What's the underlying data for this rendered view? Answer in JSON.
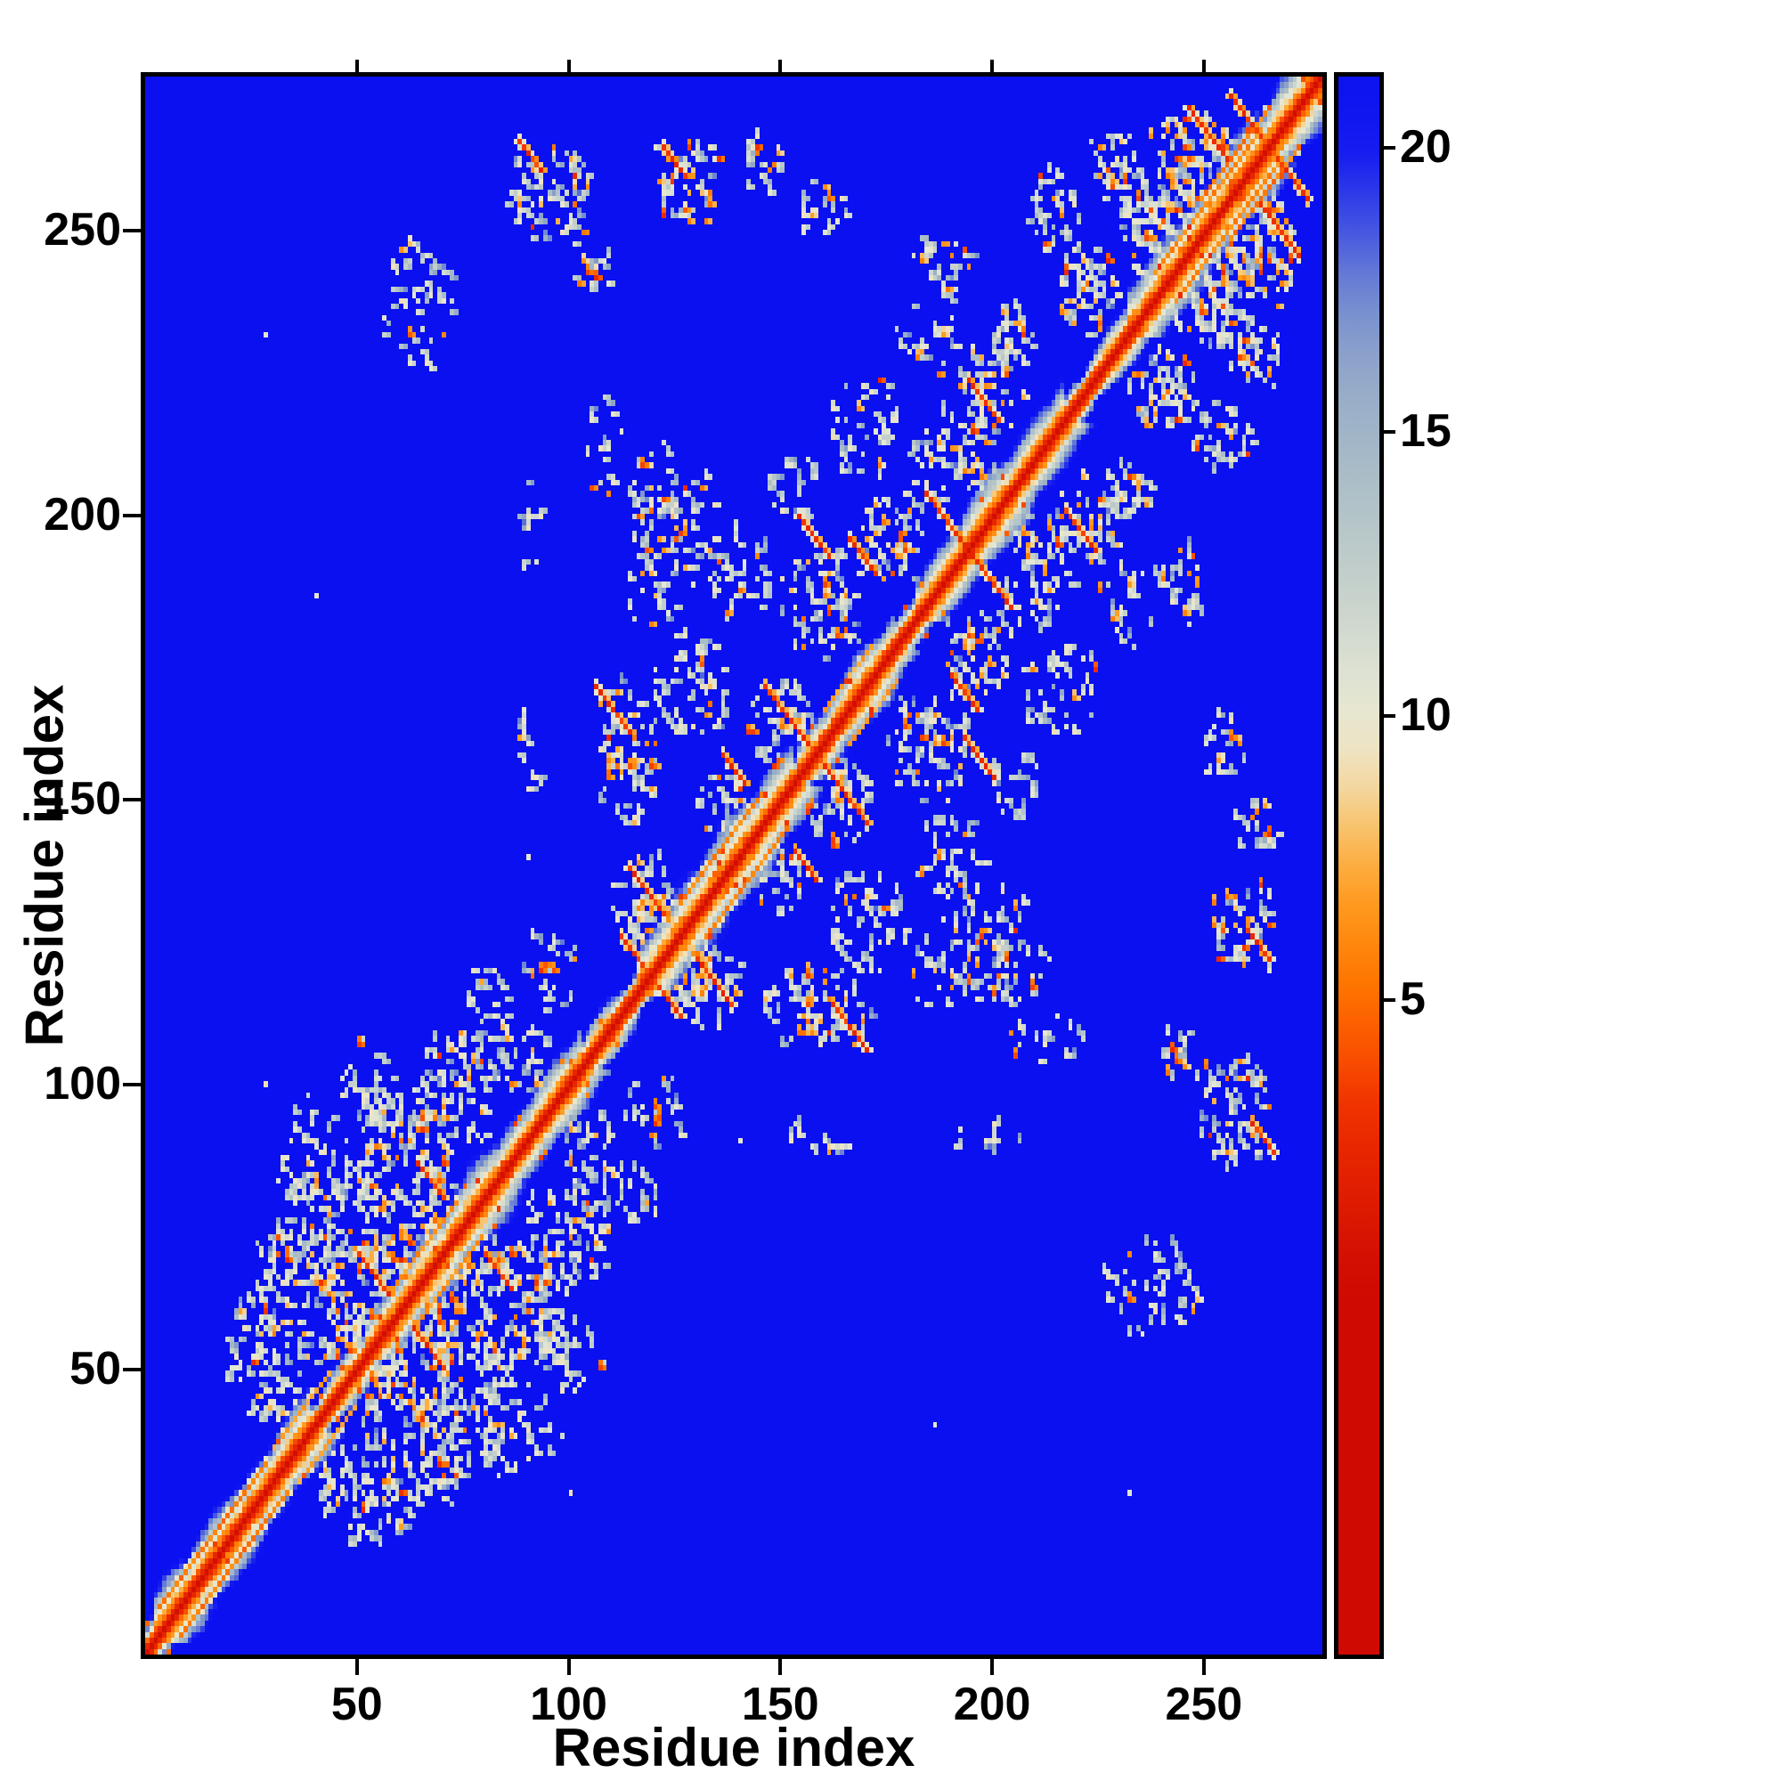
{
  "chart_data": {
    "type": "heatmap",
    "title": "",
    "xlabel": "Residue index",
    "ylabel": "Residue index",
    "x_range": [
      0,
      278
    ],
    "y_range": [
      0,
      277
    ],
    "x_ticks": [
      50,
      100,
      150,
      200,
      250
    ],
    "y_ticks": [
      50,
      100,
      150,
      200,
      250
    ],
    "x_tick_labels": [
      "50",
      "100",
      "150",
      "200",
      "250"
    ],
    "y_tick_labels": [
      "50",
      "100",
      "150",
      "200",
      "250"
    ],
    "grid": false,
    "colorbar": {
      "orientation": "vertical",
      "position": "right",
      "tick_labels": [
        "5",
        "10",
        "15",
        "20"
      ],
      "tick_values": [
        5,
        10,
        15,
        20
      ],
      "fraction_at_value5": 0.415,
      "fraction_per_unit": 0.036
    },
    "colormap": {
      "name": "distance-map red-orange-pale-blue (RdYlBu-like)",
      "background_hex": "#0a10f0",
      "diagonal_hex": "#d10a02",
      "stops": [
        {
          "value": 0,
          "color": "#cf0a02"
        },
        {
          "value": 3.0,
          "color": "#ee2e00"
        },
        {
          "value": 4.2,
          "color": "#fb5500"
        },
        {
          "value": 5.5,
          "color": "#ff7b00"
        },
        {
          "value": 7.0,
          "color": "#ffa128"
        },
        {
          "value": 8.2,
          "color": "#f7c878"
        },
        {
          "value": 9.2,
          "color": "#efe3c0"
        },
        {
          "value": 10.3,
          "color": "#e4e7d4"
        },
        {
          "value": 12.0,
          "color": "#c9d3cd"
        },
        {
          "value": 14.0,
          "color": "#adbfc7"
        },
        {
          "value": 16.0,
          "color": "#93a9c8"
        },
        {
          "value": 17.5,
          "color": "#6f86d2"
        },
        {
          "value": 18.8,
          "color": "#3b4ae5"
        },
        {
          "value": 20.0,
          "color": "#1218f0"
        },
        {
          "value": 22.0,
          "color": "#0a10f0"
        }
      ]
    },
    "description": "Symmetric residue-residue distance/contact map of a ~278-residue protein. Bright red main diagonal (near-zero distance) with an orange-to-gray halo of varying width; blocky speckled intra-domain contact clusters around residues 25-110 and 110-275; inter-domain contacts near residues (60-110, 225-275); deep blue background for distant residue pairs.",
    "matrix_model": {
      "grid_n": 278,
      "background_value": 22,
      "diagonal": {
        "core_values": [
          0.4,
          2.3
        ],
        "halo_base_width": 2.5,
        "halo_value_span": [
          5,
          20
        ],
        "wide_regions": [
          {
            "from": 2,
            "to": 38,
            "extra": 3
          },
          {
            "from": 52,
            "to": 102,
            "extra": 3
          },
          {
            "from": 116,
            "to": 152,
            "extra": 4
          },
          {
            "from": 154,
            "to": 176,
            "extra": 2
          },
          {
            "from": 182,
            "to": 216,
            "extra": 3
          },
          {
            "from": 232,
            "to": 276,
            "extra": 4
          }
        ]
      },
      "contact_clusters": [
        {
          "c": [
            28,
            52
          ],
          "r": [
            10,
            12
          ],
          "d": 0.3,
          "h": 0.18
        },
        {
          "c": [
            45,
            68
          ],
          "r": [
            16,
            18
          ],
          "d": 0.32,
          "h": 0.2
        },
        {
          "c": [
            60,
            88
          ],
          "r": [
            14,
            14
          ],
          "d": 0.3,
          "h": 0.2
        },
        {
          "c": [
            75,
            100
          ],
          "r": [
            11,
            11
          ],
          "d": 0.28,
          "h": 0.18
        },
        {
          "c": [
            38,
            88
          ],
          "r": [
            9,
            11
          ],
          "d": 0.2,
          "h": 0.12
        },
        {
          "c": [
            52,
            100
          ],
          "r": [
            8,
            9
          ],
          "d": 0.18,
          "h": 0.12
        },
        {
          "c": [
            88,
            104
          ],
          "r": [
            8,
            7
          ],
          "d": 0.35,
          "h": 0.2
        },
        {
          "c": [
            65,
            72
          ],
          "r": [
            9,
            8
          ],
          "d": 0.35,
          "h": 0.25
        },
        {
          "c": [
            48,
            55
          ],
          "r": [
            7,
            6
          ],
          "d": 0.4,
          "h": 0.25
        },
        {
          "c": [
            30,
            68
          ],
          "r": [
            6,
            8
          ],
          "d": 0.22,
          "h": 0.1
        },
        {
          "c": [
            95,
            120
          ],
          "r": [
            7,
            9
          ],
          "d": 0.2,
          "h": 0.12
        },
        {
          "c": [
            80,
            115
          ],
          "r": [
            6,
            8
          ],
          "d": 0.15,
          "h": 0.1
        },
        {
          "c": [
            118,
            132
          ],
          "r": [
            9,
            9
          ],
          "d": 0.35,
          "h": 0.25
        },
        {
          "c": [
            113,
            158
          ],
          "r": [
            8,
            14
          ],
          "d": 0.28,
          "h": 0.25
        },
        {
          "c": [
            128,
            170
          ],
          "r": [
            10,
            10
          ],
          "d": 0.25,
          "h": 0.15
        },
        {
          "c": [
            124,
            200
          ],
          "r": [
            11,
            14
          ],
          "d": 0.25,
          "h": 0.18
        },
        {
          "c": [
            140,
            190
          ],
          "r": [
            9,
            9
          ],
          "d": 0.28,
          "h": 0.18
        },
        {
          "c": [
            150,
            163
          ],
          "r": [
            9,
            8
          ],
          "d": 0.35,
          "h": 0.3
        },
        {
          "c": [
            160,
            185
          ],
          "r": [
            11,
            11
          ],
          "d": 0.28,
          "h": 0.2
        },
        {
          "c": [
            176,
            196
          ],
          "r": [
            9,
            9
          ],
          "d": 0.32,
          "h": 0.25
        },
        {
          "c": [
            190,
            212
          ],
          "r": [
            11,
            11
          ],
          "d": 0.28,
          "h": 0.2
        },
        {
          "c": [
            170,
            215
          ],
          "r": [
            9,
            11
          ],
          "d": 0.2,
          "h": 0.12
        },
        {
          "c": [
            200,
            224
          ],
          "r": [
            9,
            9
          ],
          "d": 0.3,
          "h": 0.2
        },
        {
          "c": [
            185,
            231
          ],
          "r": [
            9,
            7
          ],
          "d": 0.22,
          "h": 0.15
        },
        {
          "c": [
            152,
            205
          ],
          "r": [
            7,
            7
          ],
          "d": 0.2,
          "h": 0.12
        },
        {
          "c": [
            136,
            150
          ],
          "r": [
            7,
            7
          ],
          "d": 0.3,
          "h": 0.2
        },
        {
          "c": [
            120,
            185
          ],
          "r": [
            7,
            9
          ],
          "d": 0.2,
          "h": 0.12
        },
        {
          "c": [
            90,
            158
          ],
          "r": [
            4,
            9
          ],
          "d": 0.18,
          "h": 0.1
        },
        {
          "c": [
            90,
            200
          ],
          "r": [
            4,
            10
          ],
          "d": 0.14,
          "h": 0.1
        },
        {
          "c": [
            108,
            212
          ],
          "r": [
            5,
            10
          ],
          "d": 0.18,
          "h": 0.12
        },
        {
          "c": [
            105,
            245
          ],
          "r": [
            6,
            8
          ],
          "d": 0.2,
          "h": 0.15
        },
        {
          "c": [
            246,
            260
          ],
          "r": [
            13,
            11
          ],
          "d": 0.4,
          "h": 0.28
        },
        {
          "c": [
            236,
            250
          ],
          "r": [
            8,
            8
          ],
          "d": 0.35,
          "h": 0.2
        },
        {
          "c": [
            222,
            240
          ],
          "r": [
            8,
            9
          ],
          "d": 0.3,
          "h": 0.2
        },
        {
          "c": [
            214,
            254
          ],
          "r": [
            8,
            8
          ],
          "d": 0.22,
          "h": 0.15
        },
        {
          "c": [
            229,
            262
          ],
          "r": [
            8,
            7
          ],
          "d": 0.3,
          "h": 0.2
        },
        {
          "c": [
            64,
            237
          ],
          "r": [
            9,
            12
          ],
          "d": 0.2,
          "h": 0.12
        },
        {
          "c": [
            95,
            257
          ],
          "r": [
            11,
            9
          ],
          "d": 0.28,
          "h": 0.22
        },
        {
          "c": [
            129,
            258
          ],
          "r": [
            9,
            8
          ],
          "d": 0.3,
          "h": 0.22
        },
        {
          "c": [
            145,
            262
          ],
          "r": [
            6,
            6
          ],
          "d": 0.3,
          "h": 0.2
        },
        {
          "c": [
            160,
            254
          ],
          "r": [
            6,
            6
          ],
          "d": 0.2,
          "h": 0.15
        },
        {
          "c": [
            188,
            245
          ],
          "r": [
            8,
            8
          ],
          "d": 0.28,
          "h": 0.2
        },
        {
          "c": [
            205,
            232
          ],
          "r": [
            6,
            6
          ],
          "d": 0.25,
          "h": 0.15
        }
      ],
      "antiparallel_streaks": [
        {
          "x": 50,
          "y": 70,
          "len": 8
        },
        {
          "x": 64,
          "y": 86,
          "len": 7
        },
        {
          "x": 112,
          "y": 126,
          "len": 7
        },
        {
          "x": 114,
          "y": 138,
          "len": 9
        },
        {
          "x": 106,
          "y": 170,
          "len": 9
        },
        {
          "x": 146,
          "y": 170,
          "len": 11
        },
        {
          "x": 154,
          "y": 200,
          "len": 8
        },
        {
          "x": 184,
          "y": 204,
          "len": 13
        },
        {
          "x": 194,
          "y": 224,
          "len": 8
        },
        {
          "x": 246,
          "y": 272,
          "len": 10
        },
        {
          "x": 256,
          "y": 274,
          "len": 8
        },
        {
          "x": 88,
          "y": 266,
          "len": 6
        },
        {
          "x": 122,
          "y": 265,
          "len": 6
        },
        {
          "x": 136,
          "y": 158,
          "len": 6
        },
        {
          "x": 166,
          "y": 196,
          "len": 7
        }
      ],
      "parallel_streaks": [
        {
          "x": 3,
          "y": 8,
          "len": 26,
          "v": 4.5
        },
        {
          "x": 30,
          "y": 36,
          "len": 14,
          "v": 6
        },
        {
          "x": 58,
          "y": 64,
          "len": 16,
          "v": 5.5
        },
        {
          "x": 126,
          "y": 132,
          "len": 20,
          "v": 5
        },
        {
          "x": 160,
          "y": 166,
          "len": 12,
          "v": 6
        },
        {
          "x": 238,
          "y": 243,
          "len": 26,
          "v": 5
        },
        {
          "x": 250,
          "y": 257,
          "len": 16,
          "v": 4.5
        }
      ],
      "speckles": [
        {
          "p": [
            70,
            232
          ],
          "v": 6
        },
        {
          "p": [
            96,
            265
          ],
          "v": 5.5
        },
        {
          "p": [
            133,
            257
          ],
          "v": 5.5
        },
        {
          "p": [
            190,
            246
          ],
          "v": 6
        },
        {
          "p": [
            222,
            241
          ],
          "v": 5.5
        },
        {
          "p": [
            104,
            250
          ],
          "v": 6
        },
        {
          "p": [
            148,
            262
          ],
          "v": 5.5
        },
        {
          "p": [
            260,
            268
          ],
          "v": 4
        },
        {
          "p": [
            60,
            90
          ],
          "v": 5
        },
        {
          "p": [
            75,
            82
          ],
          "v": 4.5
        },
        {
          "p": [
            45,
            60
          ],
          "v": 5
        },
        {
          "p": [
            120,
            160
          ],
          "v": 5
        },
        {
          "p": [
            165,
            180
          ],
          "v": 4.5
        },
        {
          "p": [
            200,
            216
          ],
          "v": 5
        },
        {
          "p": [
            240,
            252
          ],
          "v": 4.5
        },
        {
          "p": [
            28,
            100
          ],
          "v": 9
        },
        {
          "p": [
            40,
            186
          ],
          "v": 10
        },
        {
          "p": [
            28,
            232
          ],
          "v": 10.5
        },
        {
          "p": [
            250,
            155
          ],
          "v": 10
        },
        {
          "p": [
            265,
            120
          ],
          "v": 10
        },
        {
          "p": [
            90,
            140
          ],
          "v": 10
        }
      ]
    }
  },
  "render": {
    "seed": 11
  }
}
